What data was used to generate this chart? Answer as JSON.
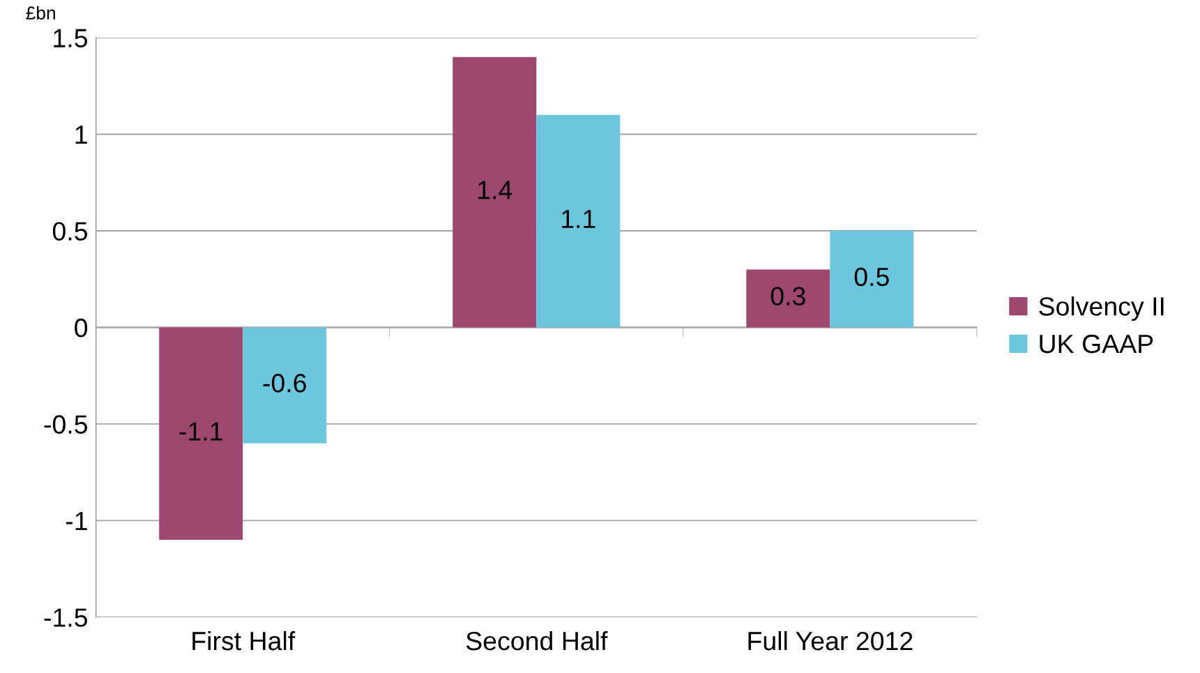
{
  "chart_data": {
    "type": "bar",
    "ylabel": "£bn",
    "categories": [
      "First Half",
      "Second Half",
      "Full Year 2012"
    ],
    "series": [
      {
        "name": "Solvency II",
        "color": "#9e4770",
        "values": [
          -1.1,
          1.4,
          0.3
        ]
      },
      {
        "name": "UK GAAP",
        "color": "#6cc7de",
        "values": [
          -0.6,
          1.1,
          0.5
        ]
      }
    ],
    "ylim": [
      -1.5,
      1.5
    ],
    "yticks": [
      -1.5,
      -1,
      -0.5,
      0,
      0.5,
      1,
      1.5
    ],
    "grid": "y",
    "legend": "right",
    "data_labels": true
  }
}
